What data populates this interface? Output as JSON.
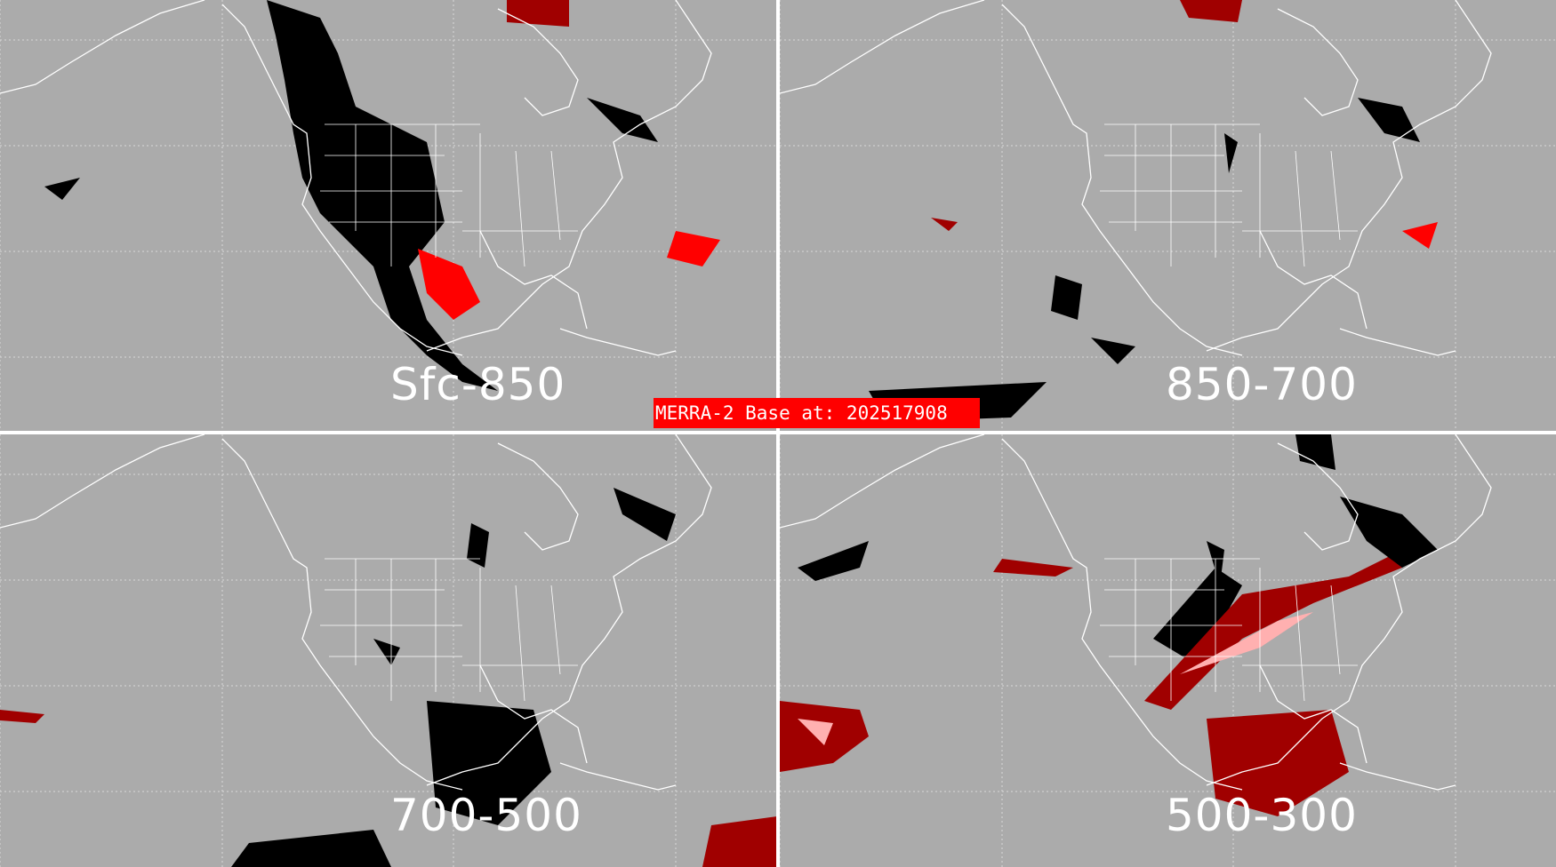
{
  "banner": {
    "text": "MERRA-2 Base at: 202517908",
    "color": "#ff0000"
  },
  "colors": {
    "background": "#ababab",
    "coastline": "#ffffff",
    "category_black": "#000000",
    "category_red": "#ff0000",
    "category_darkred": "#a00000",
    "category_pink": "#ffb0b0"
  },
  "panels": [
    {
      "label": "Sfc-850"
    },
    {
      "label": "850-700"
    },
    {
      "label": "700-500"
    },
    {
      "label": "500-300"
    }
  ]
}
